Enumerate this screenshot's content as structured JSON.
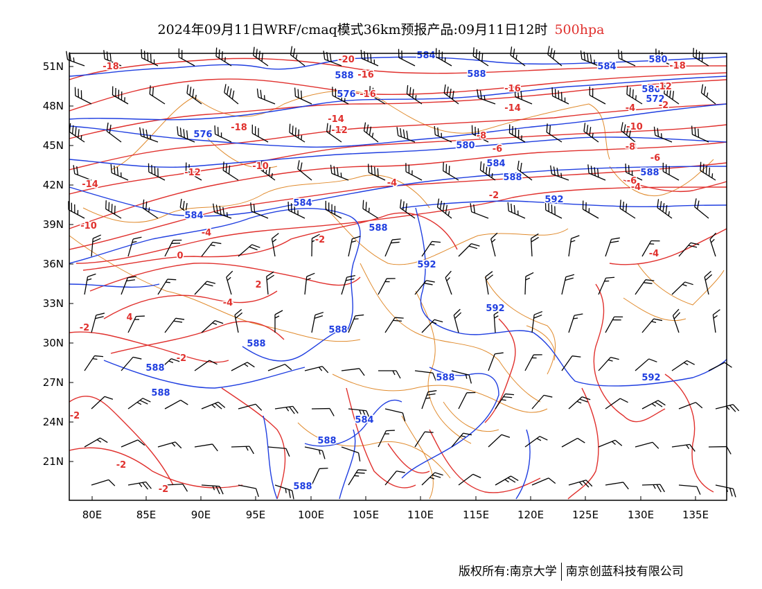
{
  "title": {
    "main": "2024年09月11日WRF/cmaq模式36km预报产品:09月11日12时",
    "level": "500hpa",
    "level_color": "#e0302d"
  },
  "axes": {
    "x_ticks": [
      "80E",
      "85E",
      "90E",
      "95E",
      "100E",
      "105E",
      "110E",
      "115E",
      "120E",
      "125E",
      "130E",
      "135E"
    ],
    "y_ticks": [
      "51N",
      "48N",
      "45N",
      "42N",
      "39N",
      "36N",
      "33N",
      "30N",
      "27N",
      "24N",
      "21N"
    ]
  },
  "colors": {
    "height_contour": "#1f3ee0",
    "temperature_contour": "#e0302d",
    "borders": "#e08a2c",
    "wind_barbs": "#000000"
  },
  "height_labels": [
    "584",
    "580",
    "588",
    "576",
    "588",
    "580",
    "576",
    "584",
    "580",
    "572",
    "584",
    "584",
    "588",
    "584",
    "592",
    "588",
    "592",
    "588",
    "592",
    "592",
    "588",
    "588",
    "588",
    "588",
    "588",
    "584",
    "588",
    "588"
  ],
  "temperature_labels": [
    "-20",
    "-18",
    "-16",
    "-16",
    "-18",
    "-16",
    "-14",
    "-12",
    "-10",
    "-8",
    "-6",
    "-4",
    "-2",
    "0",
    "2",
    "4",
    "-4",
    "-14",
    "-12",
    "-10",
    "-8",
    "-6",
    "-4",
    "-2",
    "-18",
    "-14",
    "-12",
    "-10",
    "-8",
    "-6",
    "-4",
    "-2",
    "-2",
    "-2",
    "-2",
    "-2",
    "-4",
    "-4",
    "-2"
  ],
  "footer": {
    "copyright": "版权所有:南京大学",
    "company": "南京创蓝科技有限公司"
  }
}
